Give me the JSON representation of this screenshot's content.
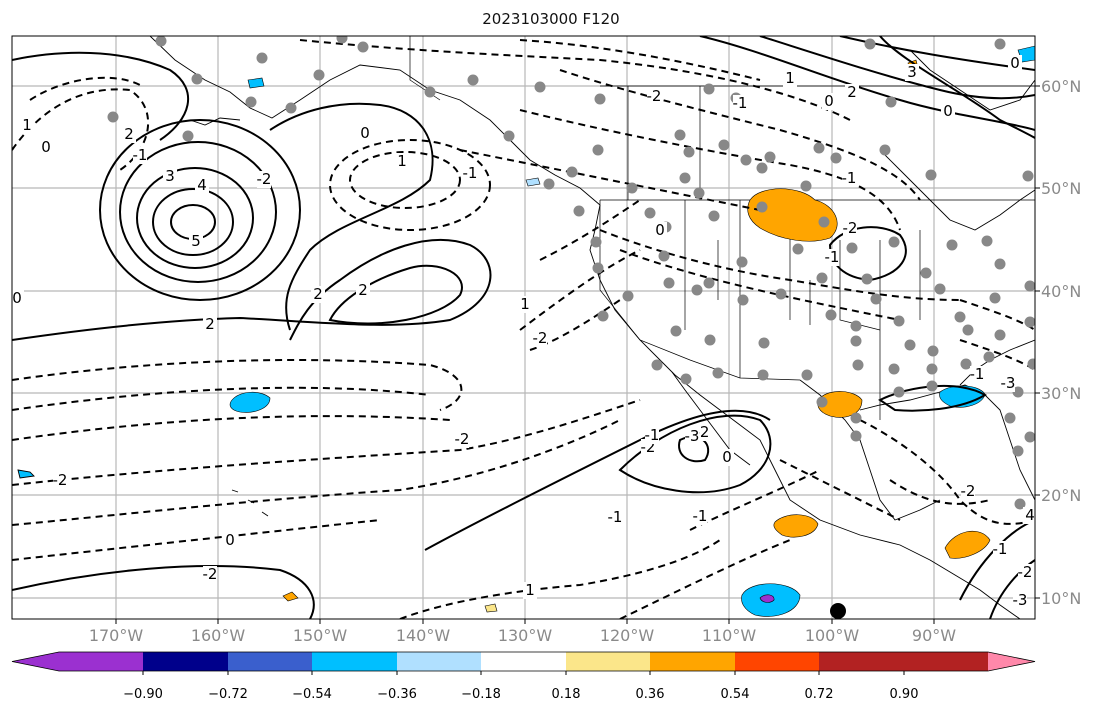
{
  "title": "2023103000 F120",
  "lon_ticks": [
    "170°W",
    "160°W",
    "150°W",
    "140°W",
    "130°W",
    "120°W",
    "110°W",
    "100°W",
    "90°W"
  ],
  "lat_ticks": [
    "60°N",
    "50°N",
    "40°N",
    "30°N",
    "20°N",
    "10°N"
  ],
  "colorbar": {
    "colors": [
      "#9b30d0",
      "#00008b",
      "#3a5fcd",
      "#00bfff",
      "#b0e0ff",
      "#ffffff",
      "#fbe68a",
      "#ffa500",
      "#ff4500",
      "#b22222",
      "#ff88aa"
    ],
    "labels": [
      "−0.90",
      "−0.72",
      "−0.54",
      "−0.36",
      "−0.18",
      "0.18",
      "0.36",
      "0.54",
      "0.72",
      "0.90"
    ]
  },
  "contour_labels": [
    "1",
    "0",
    "2",
    "-1",
    "-2",
    "3",
    "4",
    "5",
    "2",
    "0",
    "1",
    "-1",
    "0",
    "2",
    "2",
    "1",
    "-2",
    "-2",
    "-2",
    "0",
    "-2",
    "0",
    "-1",
    "-2",
    "0",
    "1",
    "2",
    "0",
    "-1",
    "-2",
    "-1",
    "0",
    "-1",
    "1",
    "-2",
    "-2",
    "-1",
    "0",
    "-3",
    "-1",
    "3",
    "-2",
    "-1",
    "-3",
    "-1",
    "-2",
    "-3",
    "4"
  ]
}
